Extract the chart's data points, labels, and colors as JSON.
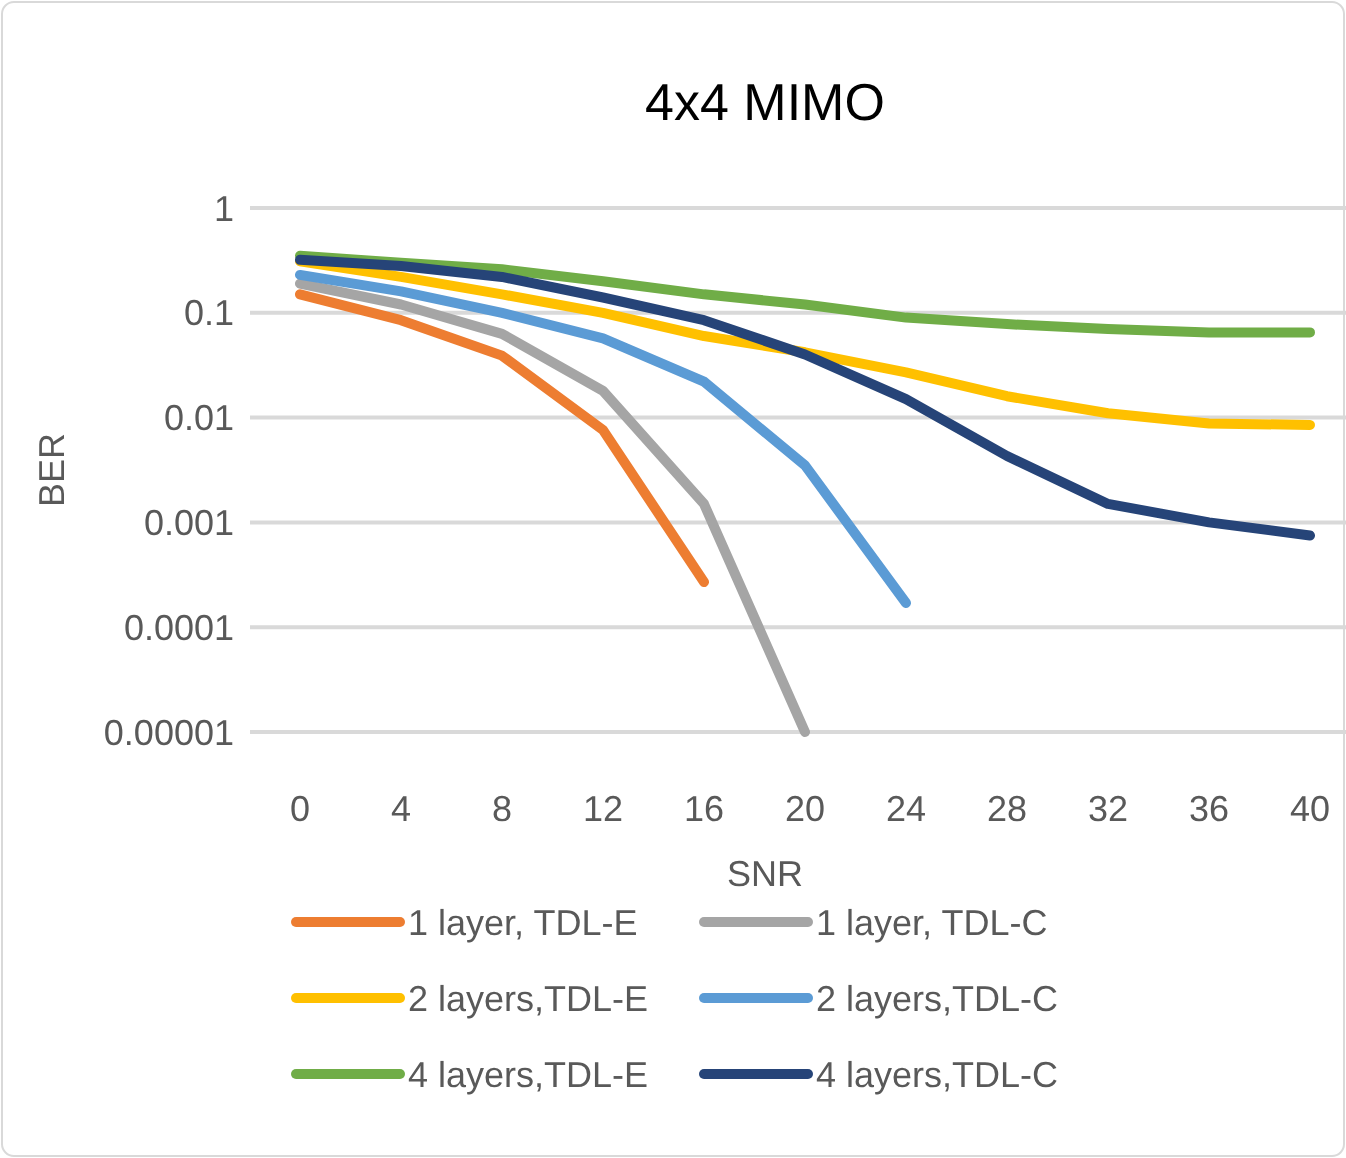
{
  "chart_data": {
    "type": "line",
    "title": "4x4 MIMO",
    "xlabel": "SNR",
    "ylabel": "BER",
    "categories": [
      "0",
      "4",
      "8",
      "12",
      "16",
      "20",
      "24",
      "28",
      "32",
      "36",
      "40"
    ],
    "log": true,
    "ylim": [
      1e-05,
      1
    ],
    "yticks": [
      {
        "value": 1e-05,
        "label": "0.00001"
      },
      0.0001,
      0.001,
      0.01,
      0.1,
      1
    ],
    "grid": "y",
    "legend": "bottom",
    "marker": "none",
    "line_style": "solid",
    "series": [
      {
        "name": "1 layer, TDL-E",
        "color": "#ed7d31",
        "values": [
          0.15,
          0.085,
          0.039,
          0.0076,
          0.00027,
          null,
          null,
          null,
          null,
          null,
          null
        ]
      },
      {
        "name": "1 layer, TDL-C",
        "color": "#a5a5a5",
        "values": [
          0.19,
          0.12,
          0.063,
          0.018,
          0.0015,
          1e-05,
          null,
          null,
          null,
          null,
          null
        ]
      },
      {
        "name": "2 layers,TDL-E",
        "color": "#ffc000",
        "values": [
          0.31,
          0.22,
          0.15,
          0.1,
          0.06,
          0.042,
          0.027,
          0.016,
          0.011,
          0.0088,
          0.0085
        ]
      },
      {
        "name": "2 layers,TDL-C",
        "color": "#5b9bd5",
        "values": [
          0.23,
          0.16,
          0.1,
          0.057,
          0.022,
          0.0035,
          0.00017,
          null,
          null,
          null,
          null
        ]
      },
      {
        "name": "4 layers,TDL-E",
        "color": "#70ad47",
        "values": [
          0.35,
          0.3,
          0.26,
          0.2,
          0.15,
          0.12,
          0.09,
          0.078,
          0.07,
          0.065,
          0.065
        ]
      },
      {
        "name": "4 layers,TDL-C",
        "color": "#264478",
        "values": [
          0.32,
          0.28,
          0.22,
          0.14,
          0.085,
          0.04,
          0.015,
          0.0043,
          0.0015,
          0.001,
          0.00075
        ]
      }
    ]
  }
}
